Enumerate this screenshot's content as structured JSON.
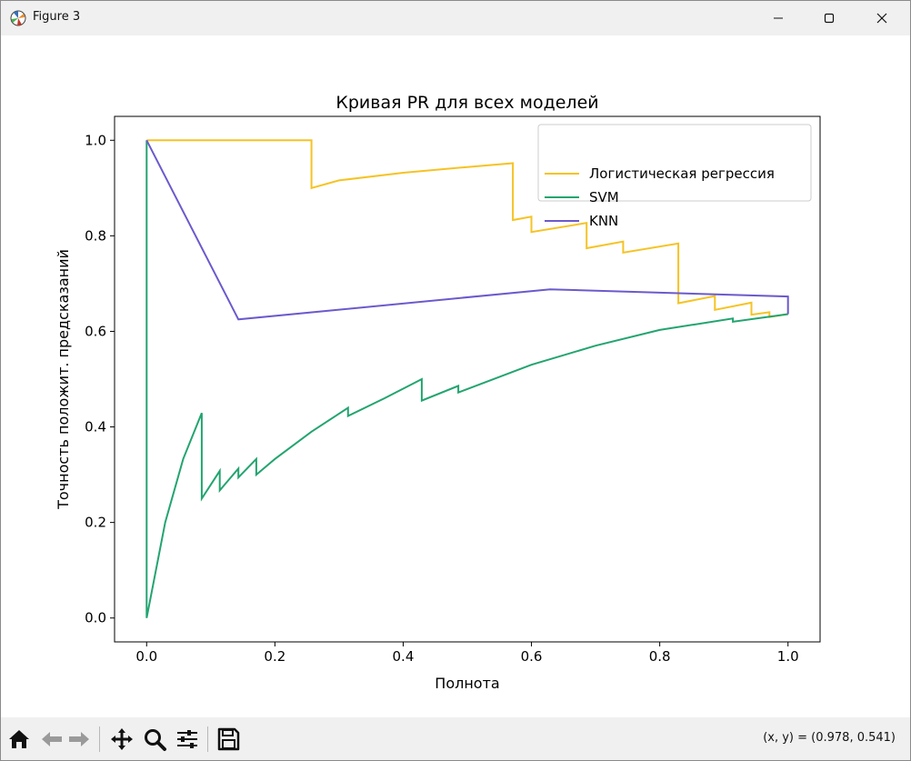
{
  "window": {
    "title": "Figure 3",
    "minimize_icon": "minimize-icon",
    "maximize_icon": "maximize-icon",
    "close_icon": "close-icon"
  },
  "toolbar": {
    "buttons": [
      "home-icon",
      "back-icon",
      "forward-icon",
      "pan-icon",
      "zoom-icon",
      "configure-subplots-icon",
      "save-icon"
    ],
    "coords_text": "(x, y) = (0.978, 0.541)"
  },
  "chart_data": {
    "type": "line",
    "title": "Кривая PR для всех моделей",
    "xlabel": "Полнота",
    "ylabel": "Точность положит. предсказаний",
    "xlim": [
      -0.05,
      1.05
    ],
    "ylim": [
      -0.05,
      1.05
    ],
    "xticks": [
      "0.0",
      "0.2",
      "0.4",
      "0.6",
      "0.8",
      "1.0"
    ],
    "yticks": [
      "0.0",
      "0.2",
      "0.4",
      "0.6",
      "0.8",
      "1.0"
    ],
    "grid": false,
    "legend_position": "top-right",
    "series": [
      {
        "name": "Логистическая регрессия",
        "color": "#f5c324",
        "points": [
          [
            0,
            1.0
          ],
          [
            0.257,
            1.0
          ],
          [
            0.257,
            0.9
          ],
          [
            0.3,
            0.916
          ],
          [
            0.4,
            0.932
          ],
          [
            0.5,
            0.944
          ],
          [
            0.571,
            0.952
          ],
          [
            0.571,
            0.833
          ],
          [
            0.6,
            0.84
          ],
          [
            0.6,
            0.808
          ],
          [
            0.686,
            0.827
          ],
          [
            0.686,
            0.774
          ],
          [
            0.743,
            0.788
          ],
          [
            0.743,
            0.765
          ],
          [
            0.829,
            0.784
          ],
          [
            0.829,
            0.659
          ],
          [
            0.886,
            0.674
          ],
          [
            0.886,
            0.645
          ],
          [
            0.943,
            0.66
          ],
          [
            0.943,
            0.635
          ],
          [
            0.971,
            0.64
          ],
          [
            0.971,
            0.63
          ],
          [
            1.0,
            0.636
          ]
        ]
      },
      {
        "name": "SVM",
        "color": "#23a46f",
        "points": [
          [
            0,
            1.0
          ],
          [
            0,
            0.0
          ],
          [
            0.029,
            0.2
          ],
          [
            0.057,
            0.333
          ],
          [
            0.086,
            0.429
          ],
          [
            0.086,
            0.25
          ],
          [
            0.114,
            0.308
          ],
          [
            0.114,
            0.267
          ],
          [
            0.143,
            0.313
          ],
          [
            0.143,
            0.294
          ],
          [
            0.171,
            0.333
          ],
          [
            0.171,
            0.3
          ],
          [
            0.2,
            0.333
          ],
          [
            0.257,
            0.39
          ],
          [
            0.314,
            0.44
          ],
          [
            0.314,
            0.423
          ],
          [
            0.371,
            0.46
          ],
          [
            0.429,
            0.5
          ],
          [
            0.429,
            0.455
          ],
          [
            0.486,
            0.486
          ],
          [
            0.486,
            0.472
          ],
          [
            0.6,
            0.53
          ],
          [
            0.7,
            0.57
          ],
          [
            0.8,
            0.603
          ],
          [
            0.914,
            0.627
          ],
          [
            0.914,
            0.62
          ],
          [
            1.0,
            0.636
          ]
        ]
      },
      {
        "name": "KNN",
        "color": "#6a5acd",
        "points": [
          [
            0,
            1.0
          ],
          [
            0.143,
            0.625
          ],
          [
            0.629,
            0.688
          ],
          [
            1.0,
            0.673
          ],
          [
            1.0,
            0.636
          ]
        ]
      }
    ]
  }
}
